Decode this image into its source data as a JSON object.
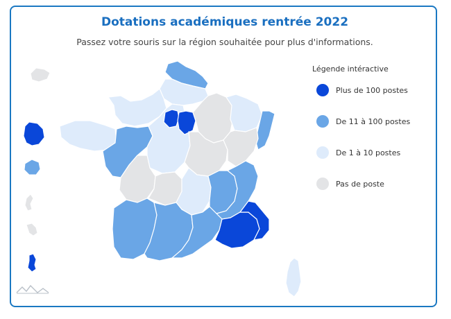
{
  "title": "Dotations académiques rentrée 2022",
  "subtitle": "Passez votre souris sur la région souhaitée pour plus d'informations.",
  "legend": {
    "title": "Légende intéractive",
    "items": [
      {
        "label": "Plus de 100 postes",
        "color": "#0a47d9"
      },
      {
        "label": "De 11 à 100 postes",
        "color": "#6aa6e6"
      },
      {
        "label": "De 1 à 10 postes",
        "color": "#deebfb"
      },
      {
        "label": "Pas de poste",
        "color": "#e3e4e6"
      }
    ]
  }
}
